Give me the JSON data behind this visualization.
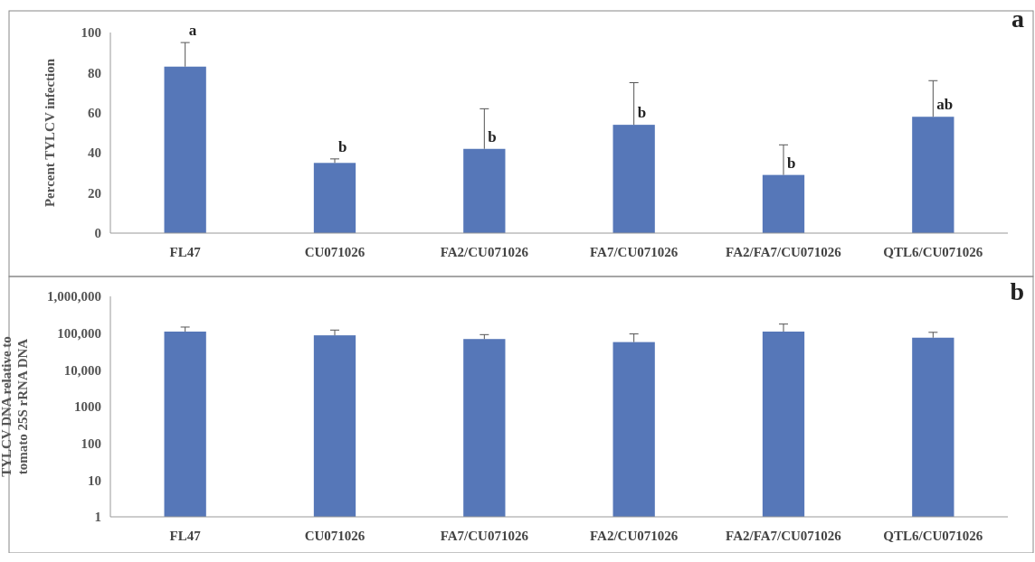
{
  "chart_data": [
    {
      "type": "bar",
      "ylabel": "Percent TYLCV infection",
      "categories": [
        "FL47",
        "CU071026",
        "FA2/CU071026",
        "FA7/CU071026",
        "FA2/FA7/CU071026",
        "QTL6/CU071026"
      ],
      "series": [
        {
          "color": "#5677b8",
          "values": [
            83,
            35,
            42,
            54,
            29,
            58
          ],
          "errors": [
            [
              83,
              95
            ],
            [
              35,
              37
            ],
            [
              42,
              62
            ],
            [
              54,
              75
            ],
            [
              29,
              44
            ],
            [
              58,
              76
            ]
          ]
        }
      ],
      "ylim": [
        0,
        100
      ],
      "yticks": [
        0,
        20,
        40,
        60,
        80,
        100
      ],
      "grid": false,
      "annotations": [
        {
          "text": "a",
          "x": "FL47",
          "y": 95
        },
        {
          "text": "b",
          "x": "CU071026",
          "y": 37
        },
        {
          "text": "b",
          "x": "FA2/CU071026",
          "y": 42
        },
        {
          "text": "b",
          "x": "FA7/CU071026",
          "y": 54
        },
        {
          "text": "b",
          "x": "FA2/FA7/CU071026",
          "y": 29
        },
        {
          "text": "ab",
          "x": "QTL6/CU071026",
          "y": 58
        },
        "a"
      ]
    },
    {
      "type": "bar",
      "ylabel": "TYLCV DNA relative to tomato 25S rRNA DNA",
      "categories": [
        "FL47",
        "CU071026",
        "FA7/CU071026",
        "FA2/CU071026",
        "FA2/FA7/CU071026",
        "QTL6/CU071026"
      ],
      "series": [
        {
          "color": "#5677b8",
          "values": [
            110000,
            87000,
            69000,
            57000,
            110000,
            75000
          ],
          "errors": [
            [
              110000,
              146000
            ],
            [
              87000,
              121000
            ],
            [
              69000,
              91000
            ],
            [
              57000,
              95000
            ],
            [
              110000,
              176000
            ],
            [
              75000,
              105000
            ]
          ]
        }
      ],
      "log": "y",
      "ylim": [
        1,
        1000000
      ],
      "yticks": [
        1,
        10,
        100,
        1000,
        {
          "value": 10000,
          "label": "10,000"
        },
        {
          "value": 100000,
          "label": "100,000"
        },
        {
          "value": 1000000,
          "label": "1,000,000"
        }
      ],
      "grid": false,
      "annotations": [
        "b"
      ]
    }
  ]
}
